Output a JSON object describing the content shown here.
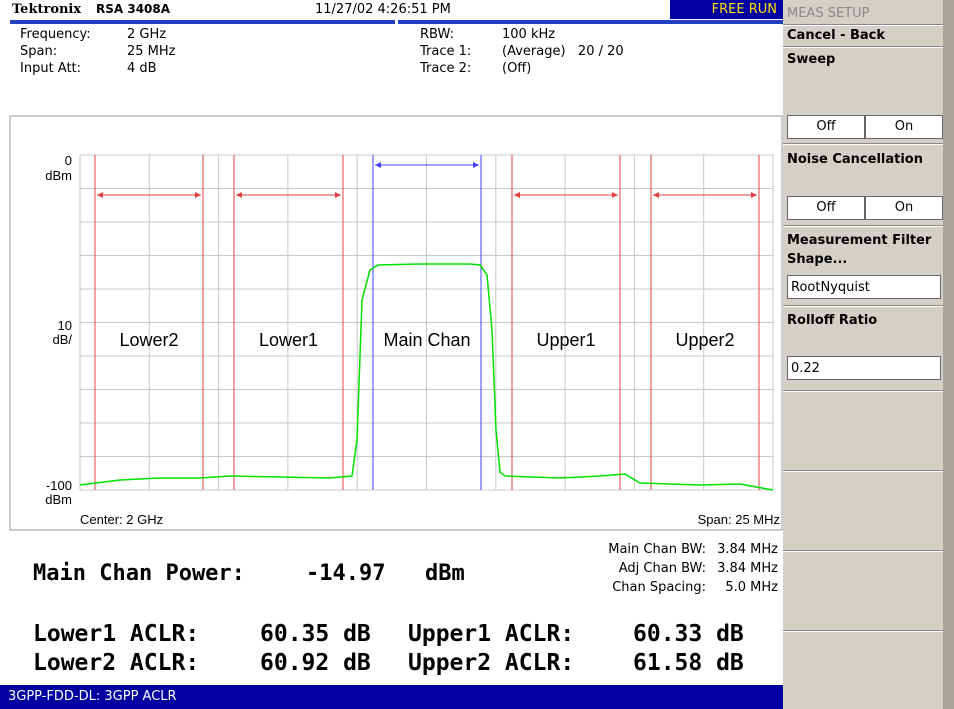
{
  "header": {
    "brand": "Tektronix",
    "model": "RSA 3408A",
    "datetime": "11/27/02 4:26:51 PM",
    "status": "FREE RUN"
  },
  "settings": [
    {
      "label": "Frequency:",
      "value": "2 GHz"
    },
    {
      "label": "Span:",
      "value": "25 MHz"
    },
    {
      "label": "Input Att:",
      "value": "4 dB"
    },
    {
      "label": "RBW:",
      "value": "100 kHz"
    },
    {
      "label": "Trace 1:",
      "value": "(Average)   20 / 20"
    },
    {
      "label": "Trace 2:",
      "value": "(Off)"
    }
  ],
  "graph": {
    "ref_top": "0",
    "ref_top_unit": "dBm",
    "scale": "10",
    "scale_unit": "dB/",
    "ref_bottom": "-100",
    "ref_bottom_unit": "dBm",
    "center": "Center: 2 GHz",
    "span": "Span: 25 MHz",
    "channels": [
      "Lower2",
      "Lower1",
      "Main Chan",
      "Upper1",
      "Upper2"
    ]
  },
  "results": {
    "main_power": {
      "label": "Main Chan Power:",
      "value": "-14.97",
      "unit": "dBm"
    },
    "info": [
      {
        "label": "Main Chan BW:",
        "value": "3.84 MHz"
      },
      {
        "label": "Adj Chan BW:",
        "value": "3.84 MHz"
      },
      {
        "label": "Chan Spacing:",
        "value": "5.0 MHz"
      }
    ],
    "aclr": [
      [
        {
          "label": "Lower1 ACLR:",
          "value": "60.35 dB"
        },
        {
          "label": "Upper1 ACLR:",
          "value": "60.33 dB"
        }
      ],
      [
        {
          "label": "Lower2 ACLR:",
          "value": "60.92 dB"
        },
        {
          "label": "Upper2 ACLR:",
          "value": "61.58 dB"
        }
      ]
    ]
  },
  "footer": "3GPP-FDD-DL: 3GPP ACLR",
  "menu": {
    "title": "MEAS SETUP",
    "back": "Cancel - Back",
    "sweep": {
      "label": "Sweep",
      "off": "Off",
      "on": "On"
    },
    "noise": {
      "label": "Noise Cancellation",
      "off": "Off",
      "on": "On"
    },
    "filter": {
      "label": "Measurement Filter Shape...",
      "value": "RootNyquist"
    },
    "rolloff": {
      "label": "Rolloff Ratio",
      "value": "0.22"
    }
  }
}
